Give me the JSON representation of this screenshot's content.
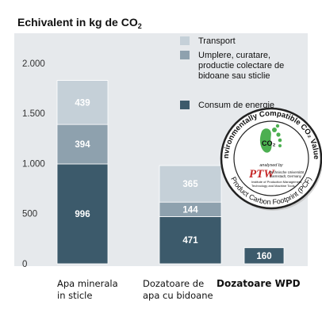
{
  "chart_data": {
    "type": "bar",
    "stacked": true,
    "title": "Echivalent in kg de CO",
    "title_subscript": "2",
    "categories": [
      "Apa minerala\nin sticle",
      "Dozatoare de\napa cu bidoane",
      "Dozatoare WPD"
    ],
    "series": [
      {
        "name": "Consum de energie",
        "values": [
          996,
          471,
          160
        ],
        "color": "#3c5a6b"
      },
      {
        "name": "Umplere, curatare, productie colectare de bidoane sau sticlie",
        "values": [
          394,
          144,
          0
        ],
        "color": "#8ea1ae"
      },
      {
        "name": "Transport",
        "values": [
          439,
          365,
          0
        ],
        "color": "#c5d0d8"
      }
    ],
    "legend_lines": [
      [
        "Transport"
      ],
      [
        "Umplere, curatare,",
        "productie colectare de",
        "bidoane sau sticlie"
      ],
      [
        "Consum de energie"
      ]
    ],
    "yticks": [
      0,
      500,
      1000,
      1500,
      2000
    ],
    "ytick_labels": [
      "0",
      "500",
      "1.000",
      "1.500",
      "2.000"
    ],
    "ylim": [
      0,
      2300
    ],
    "legend_position": "top-right",
    "grid": false,
    "background": "#e6e9ec"
  },
  "seal": {
    "top_text": "Environmentally Compatible CO₂ Values",
    "bottom_text": "Product Carbon Footprint (PCF)",
    "center_symbol": "CO₂",
    "analysed_by": "analysed by",
    "logo": "PTW",
    "institution_line1": "Technische Universität",
    "institution_line2": "Darmstadt, Germany",
    "institute_line1": "Institute of Production Management,",
    "institute_line2": "Technology and Machine Tools"
  }
}
